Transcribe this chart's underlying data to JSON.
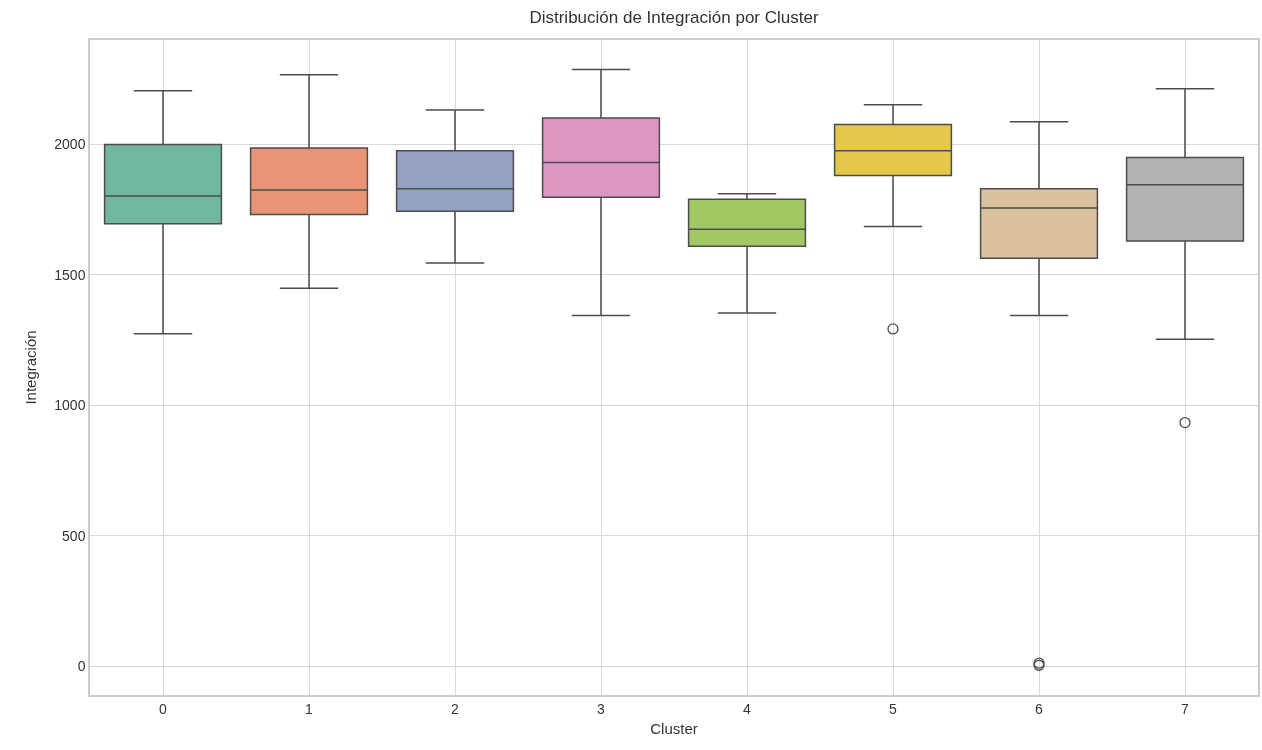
{
  "chart_data": {
    "type": "box",
    "title": "Distribución de Integración por Cluster",
    "xlabel": "Cluster",
    "ylabel": "Integración",
    "categories": [
      "0",
      "1",
      "2",
      "3",
      "4",
      "5",
      "6",
      "7"
    ],
    "colors": [
      "#71b6a1",
      "#e99575",
      "#95a3c3",
      "#db96c1",
      "#a2c864",
      "#e5c849",
      "#dbc29e",
      "#b3b3b3"
    ],
    "boxes": [
      {
        "low": 1274,
        "q1": 1696,
        "median": 1802,
        "q3": 2000,
        "high": 2206
      },
      {
        "low": 1449,
        "q1": 1731,
        "median": 1825,
        "q3": 1986,
        "high": 2267
      },
      {
        "low": 1545,
        "q1": 1744,
        "median": 1830,
        "q3": 1976,
        "high": 2132
      },
      {
        "low": 1344,
        "q1": 1797,
        "median": 1931,
        "q3": 2101,
        "high": 2287
      },
      {
        "low": 1354,
        "q1": 1610,
        "median": 1675,
        "q3": 1790,
        "high": 1811
      },
      {
        "low": 1685,
        "q1": 1881,
        "median": 1976,
        "q3": 2076,
        "high": 2152,
        "outliers": [
          1293
        ]
      },
      {
        "low": 1344,
        "q1": 1564,
        "median": 1756,
        "q3": 1830,
        "high": 2087,
        "outliers": [
          12,
          4
        ]
      },
      {
        "low": 1253,
        "q1": 1630,
        "median": 1845,
        "q3": 1950,
        "high": 2213,
        "outliers": [
          934
        ]
      }
    ],
    "ylim": [
      -110,
      2400
    ],
    "yticks": [
      0,
      500,
      1000,
      1500,
      2000
    ],
    "grid": true
  }
}
